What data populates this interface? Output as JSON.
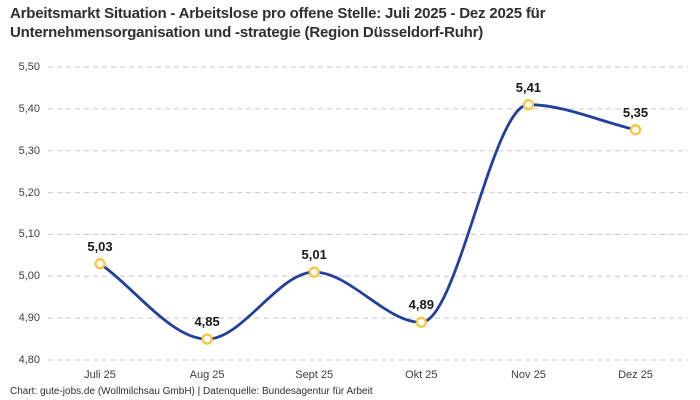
{
  "header": {
    "title_line1": "Arbeitsmarkt Situation - Arbeitslose pro offene Stelle: Juli 2025 - Dez 2025 für",
    "title_line2": "Unternehmensorganisation und -strategie (Region Düsseldorf-Ruhr)"
  },
  "footer": {
    "credit": "Chart: gute-jobs.de (Wollmilchsau GmbH) | Datenquelle: Bundesagentur für Arbeit"
  },
  "chart_data": {
    "type": "line",
    "title": "Arbeitsmarkt Situation - Arbeitslose pro offene Stelle: Juli 2025 - Dez 2025 für Unternehmensorganisation und -strategie (Region Düsseldorf-Ruhr)",
    "categories": [
      "Juli 25",
      "Aug 25",
      "Sept 25",
      "Okt 25",
      "Nov 25",
      "Dez 25"
    ],
    "values": [
      5.03,
      4.85,
      5.01,
      4.89,
      5.41,
      5.35
    ],
    "point_labels": [
      "5,03",
      "4,85",
      "5,01",
      "4,89",
      "5,41",
      "5,35"
    ],
    "y_tick_values": [
      5.5,
      5.4,
      5.3,
      5.2,
      5.1,
      5.0,
      4.9,
      4.8
    ],
    "y_tick_labels": [
      "5,50",
      "5,40",
      "5,30",
      "5,20",
      "5,10",
      "5,00",
      "4,90",
      "4,80"
    ],
    "ylim": [
      4.8,
      5.5
    ],
    "xlabel": "",
    "ylabel": "",
    "grid": "horizontal-dashed",
    "legend_position": "none",
    "interpolation": "monotone",
    "colors": {
      "line": "#21409d",
      "marker_stroke": "#f8c53e",
      "marker_fill": "#ffffff",
      "grid": "#c8c8c8",
      "title": "#2f2f2f",
      "tick_text": "#3e3e3e",
      "point_label": "#191919",
      "background": "#ffffff"
    }
  }
}
